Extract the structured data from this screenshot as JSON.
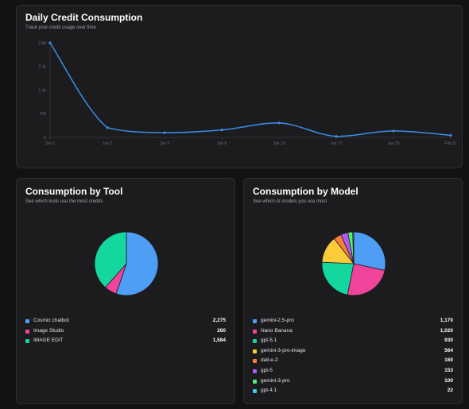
{
  "daily": {
    "title": "Daily Credit Consumption",
    "subtitle": "Track your credit usage over time"
  },
  "tool": {
    "title": "Consumption by Tool",
    "subtitle": "See which tools use the most credits"
  },
  "model": {
    "title": "Consumption by Model",
    "subtitle": "See which AI models you use most"
  },
  "chart_data": [
    {
      "type": "line",
      "x": [
        "Jan 1",
        "Jan 2",
        "Jan 6",
        "Jan 8",
        "Jan 10",
        "Jan 17",
        "Jan 20",
        "Feb 11"
      ],
      "series": [
        {
          "values": [
            2800,
            290,
            140,
            220,
            430,
            30,
            190,
            60
          ],
          "color": "#3a8ee6"
        }
      ],
      "y_ticks": [
        "0",
        "700",
        "1.4k",
        "2.1k",
        "2.8k"
      ],
      "ylim": [
        0,
        2800
      ],
      "grid": false
    },
    {
      "type": "pie",
      "labels": [
        "Cosmic chatbot",
        "Image Studio",
        "IMAGE EDIT"
      ],
      "values": [
        2275,
        260,
        1584
      ],
      "value_labels": [
        "2,275",
        "260",
        "1,584"
      ],
      "colors": [
        "#4f9ef5",
        "#f0449a",
        "#14d7a0"
      ]
    },
    {
      "type": "pie",
      "labels": [
        "gemini-2.5-pro",
        "Nano Banana",
        "gpt-5.1",
        "gemini-3-pro-image",
        "dall-e-2",
        "gpt-5",
        "gemini-3-pro",
        "gpt-4.1"
      ],
      "values": [
        1170,
        1020,
        930,
        564,
        160,
        153,
        100,
        22
      ],
      "value_labels": [
        "1,170",
        "1,020",
        "930",
        "564",
        "160",
        "153",
        "100",
        "22"
      ],
      "colors": [
        "#4f9ef5",
        "#f0449a",
        "#14d7a0",
        "#fbcb3a",
        "#f97f36",
        "#b35af6",
        "#53ef6e",
        "#3fc6ea"
      ]
    }
  ]
}
